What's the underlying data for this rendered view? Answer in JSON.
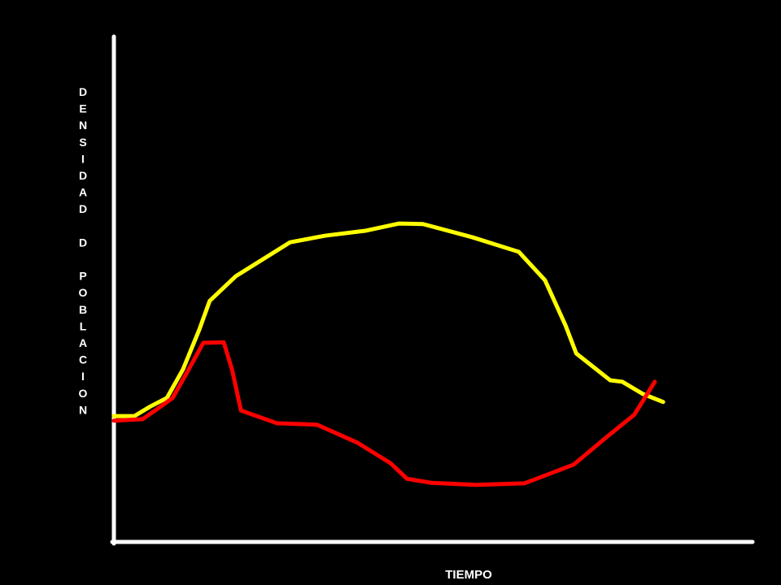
{
  "chart_data": {
    "type": "line",
    "x_label": "TIEMPO",
    "y_label": "DENSIDAD D POBLACION",
    "xlim": [
      0,
      100
    ],
    "ylim": [
      0,
      100
    ],
    "background": "#000000",
    "axis_color": "#ffffff",
    "series": [
      {
        "color": "#ffff00",
        "x": [
          0,
          3.2,
          5.7,
          8.3,
          10.8,
          13.4,
          15.0,
          19.1,
          27.6,
          33.1,
          39.5,
          44.6,
          48.4,
          56.1,
          63.4,
          67.5,
          70.7,
          72.4,
          77.7,
          79.6,
          82.8,
          86.0
        ],
        "values": [
          24.9,
          24.9,
          26.8,
          28.5,
          34.1,
          42.1,
          47.7,
          52.6,
          59.3,
          60.6,
          61.6,
          63.0,
          62.9,
          60.3,
          57.4,
          51.8,
          42.9,
          37.3,
          32.0,
          31.7,
          29.3,
          27.7
        ]
      },
      {
        "color": "#ff0000",
        "x": [
          0,
          4.5,
          7.0,
          9.2,
          11.7,
          14.0,
          17.2,
          18.5,
          19.9,
          25.5,
          31.8,
          38.2,
          43.3,
          45.9,
          49.7,
          56.7,
          64.3,
          72.0,
          77.1,
          81.5,
          84.7
        ],
        "values": [
          24.0,
          24.3,
          26.5,
          28.5,
          34.1,
          39.4,
          39.5,
          34.1,
          26.0,
          23.5,
          23.2,
          19.6,
          15.6,
          12.5,
          11.7,
          11.3,
          11.6,
          15.3,
          20.7,
          25.2,
          31.7
        ]
      }
    ]
  }
}
